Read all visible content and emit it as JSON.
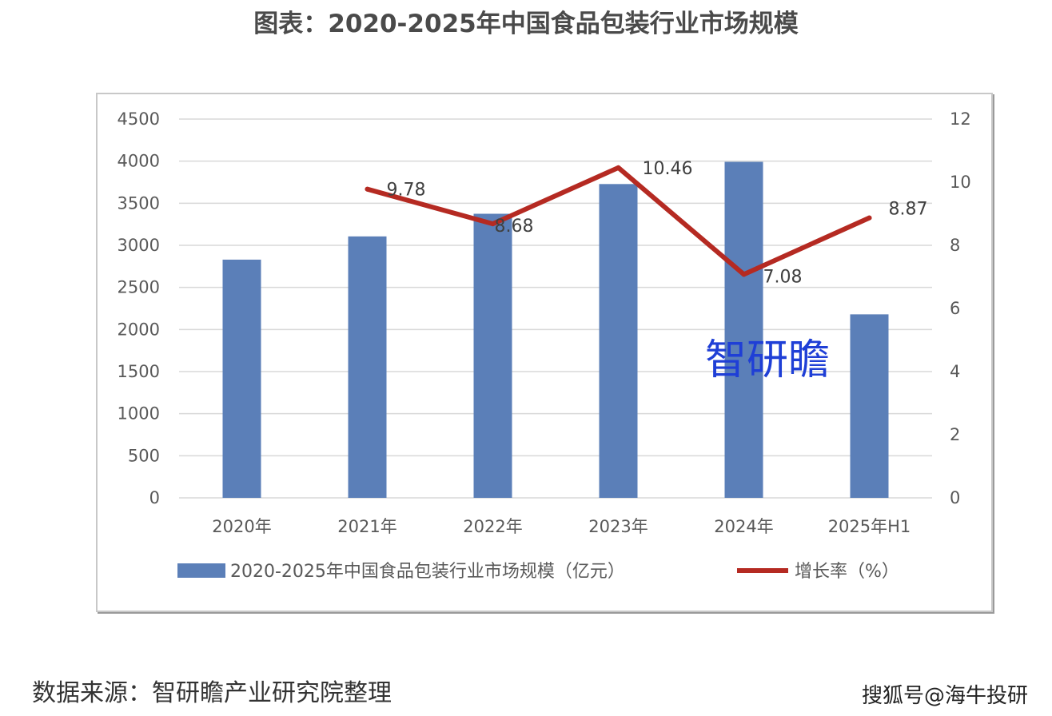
{
  "title": "图表：2020-2025年中国食品包装行业市场规模",
  "source": "数据来源：智研瞻产业研究院整理",
  "watermark_brand": "智研瞻",
  "watermark_platform": "搜狐号@海牛投研",
  "colors": {
    "bar": "#5b7fb8",
    "line": "#b52a22",
    "grid": "#d9d9d9"
  },
  "chart_data": {
    "type": "bar",
    "categories": [
      "2020年",
      "2021年",
      "2022年",
      "2023年",
      "2024年",
      "2025年H1"
    ],
    "series": [
      {
        "name": "2020-2025年中国食品包装行业市场规模（亿元）",
        "type": "bar",
        "axis": "left",
        "values": [
          2830,
          3106,
          3375,
          3728,
          3992,
          2180
        ]
      },
      {
        "name": "增长率（%）",
        "type": "line",
        "axis": "right",
        "values": [
          null,
          9.78,
          8.68,
          10.46,
          7.08,
          8.87
        ],
        "labels": [
          "",
          "9.78",
          "8.68",
          "10.46",
          "7.08",
          "8.87"
        ]
      }
    ],
    "y_left": {
      "min": 0,
      "max": 4500,
      "ticks": [
        "0",
        "500",
        "1000",
        "1500",
        "2000",
        "2500",
        "3000",
        "3500",
        "4000",
        "4500"
      ]
    },
    "y_right": {
      "min": 0,
      "max": 12,
      "ticks": [
        "0",
        "2",
        "4",
        "6",
        "8",
        "10",
        "12"
      ]
    },
    "grid": true,
    "legend_position": "bottom"
  }
}
